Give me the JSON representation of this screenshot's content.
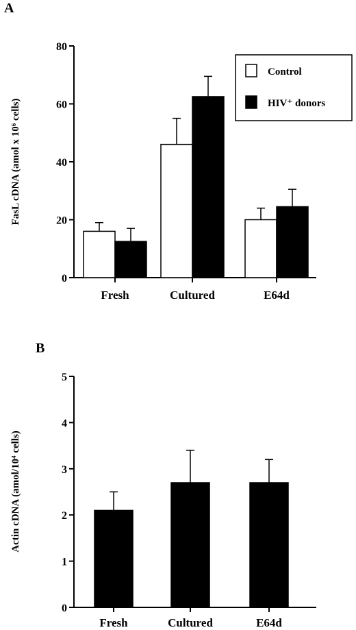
{
  "chart_data": [
    {
      "panel": "A",
      "type": "bar",
      "categories": [
        "Fresh",
        "Cultured",
        "E64d"
      ],
      "ylabel": "FasL cDNA (amol x 10⁶ cells)",
      "ylim": [
        0,
        80
      ],
      "yticks": [
        "0",
        "20",
        "40",
        "60",
        "80"
      ],
      "legend_position": "top-right",
      "series": [
        {
          "name": "Control",
          "color": "#ffffff",
          "values": [
            16,
            46,
            20
          ],
          "errors": [
            3,
            9,
            4
          ]
        },
        {
          "name": "HIV⁺ donors",
          "color": "#000000",
          "values": [
            12.5,
            62.5,
            24.5
          ],
          "errors": [
            4.5,
            7,
            6
          ]
        }
      ]
    },
    {
      "panel": "B",
      "type": "bar",
      "categories": [
        "Fresh",
        "Cultured",
        "E64d"
      ],
      "ylabel": "Actin cDNA (amol/10⁴ cells)",
      "ylim": [
        0,
        5
      ],
      "yticks": [
        "0",
        "1",
        "2",
        "3",
        "4",
        "5"
      ],
      "series": [
        {
          "color": "#000000",
          "values": [
            2.1,
            2.7,
            2.7
          ],
          "errors": [
            0.4,
            0.7,
            0.5
          ]
        }
      ]
    }
  ]
}
